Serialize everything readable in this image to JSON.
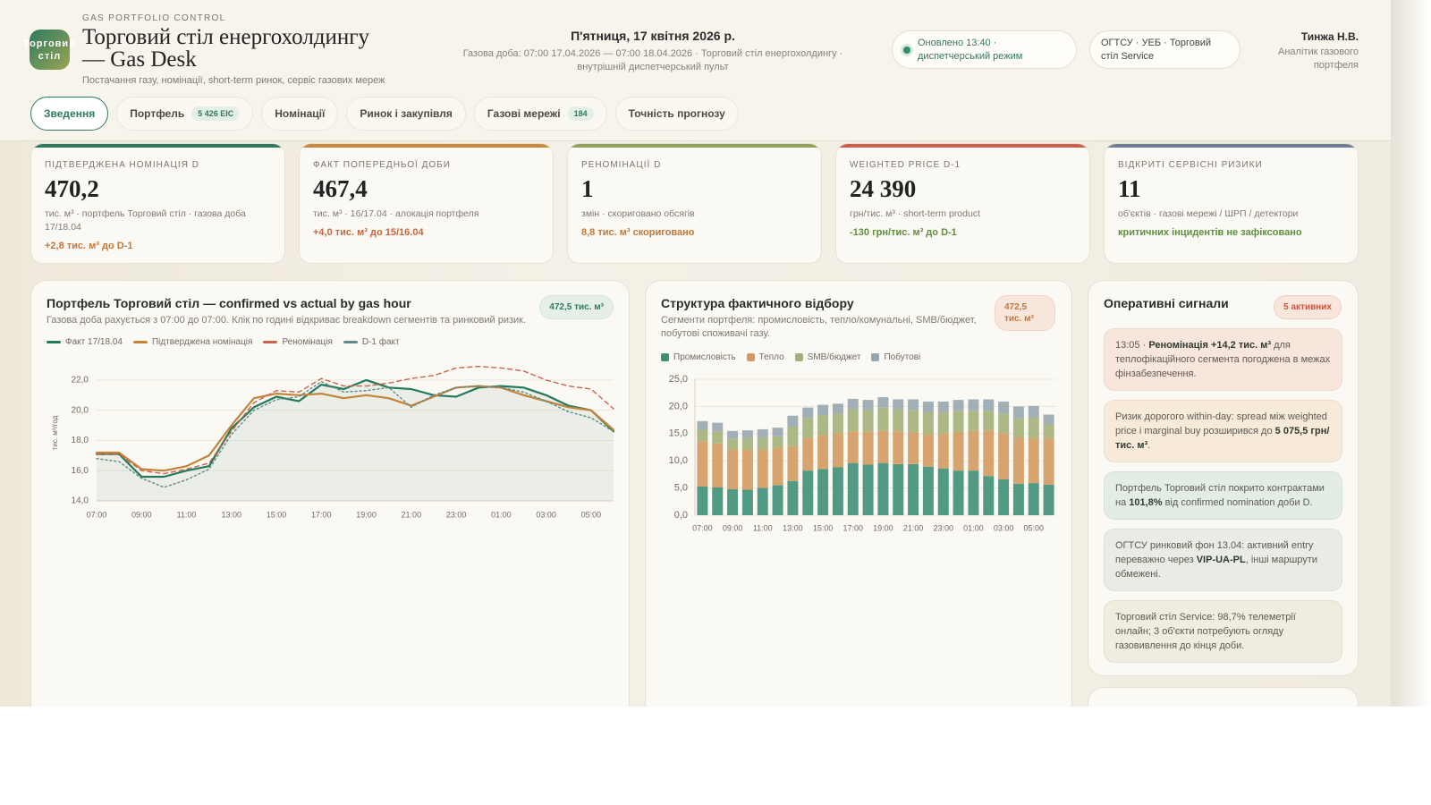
{
  "header": {
    "logo": "Торговий стіл",
    "eyebrow": "GAS PORTFOLIO CONTROL",
    "title": "Торговий стіл енергохолдингу — Gas Desk",
    "subtitle": "Постачання газу, номінації, short-term ринок, сервіс газових мереж",
    "date": "П'ятниця, 17 квітня 2026 р.",
    "gas_day": "Газова доба: 07:00 17.04.2026 — 07:00 18.04.2026 · Торговий стіл енергохолдингу · внутрішній диспетчерський пульт",
    "status": "Оновлено 13:40 · диспетчерський режим",
    "scope": "ОГТСУ · УЕБ · Торговий стіл Service",
    "user_name": "Тинжа Н.В.",
    "user_role": "Аналітик газового портфеля"
  },
  "tabs": [
    {
      "label": "Зведення",
      "active": true
    },
    {
      "label": "Портфель",
      "badge": "5 426 EIC"
    },
    {
      "label": "Номінації"
    },
    {
      "label": "Ринок і закупівля"
    },
    {
      "label": "Газові мережі",
      "badge": "184"
    },
    {
      "label": "Точність прогнозу"
    }
  ],
  "kpis": [
    {
      "label": "ПІДТВЕРДЖЕНА НОМІНАЦІЯ D",
      "value": "470,2",
      "unit": "тис. м³ · портфель Торговий стіл · газова доба 17/18.04",
      "delta": "+2,8 тис. м³ до D-1",
      "accent": "#2f7a5f",
      "delta_color": "#c2773a"
    },
    {
      "label": "ФАКТ ПОПЕРЕДНЬОЇ ДОБИ",
      "value": "467,4",
      "unit": "тис. м³ · 16/17.04 · алокація портфеля",
      "delta": "+4,0 тис. м³ до 15/16.04",
      "accent": "#c98a3e",
      "delta_color": "#c8663e"
    },
    {
      "label": "РЕНОМІНАЦІЇ D",
      "value": "1",
      "unit": "змін · скориговано обсягів",
      "delta": "8,8 тис. м³ скориговано",
      "accent": "#8fa35a",
      "delta_color": "#c2773a"
    },
    {
      "label": "WEIGHTED PRICE D-1",
      "value": "24 390",
      "unit": "грн/тис. м³ · short-term product",
      "delta": "-130 грн/тис. м³ до D-1",
      "accent": "#cf5f4a",
      "delta_color": "#5e8f3c"
    },
    {
      "label": "ВІДКРИТІ СЕРВІСНІ РИЗИКИ",
      "value": "11",
      "unit": "об'єктів · газові мережі / ШРП / детектори",
      "delta": "критичних інцидентів не зафіксовано",
      "accent": "#6f7f95",
      "delta_color": "#5e8f3c"
    }
  ],
  "chart_data": [
    {
      "type": "line",
      "title": "Портфель Торговий стіл — confirmed vs actual by gas hour",
      "subtitle": "Газова доба рахується з 07:00 до 07:00. Клік по годині відкриває breakdown сегментів та ринковий ризик.",
      "badge": "472,5 тис. м³",
      "y_label": "тис. м³/год",
      "categories": [
        "07:00",
        null,
        "09:00",
        null,
        "11:00",
        null,
        "13:00",
        null,
        "15:00",
        null,
        "17:00",
        null,
        "19:00",
        null,
        "21:00",
        null,
        "23:00",
        null,
        "01:00",
        null,
        "03:00",
        null,
        "05:00",
        null
      ],
      "ylim": [
        14,
        23
      ],
      "yticks": [
        {
          "value": 14,
          "label": "14,0"
        },
        {
          "value": 16,
          "label": "16,0"
        },
        {
          "value": 18,
          "label": "18,0"
        },
        {
          "value": 20,
          "label": "20,0"
        },
        {
          "value": 22,
          "label": "22,0"
        }
      ],
      "grid": true,
      "series": [
        {
          "name": "Факт 17/18.04",
          "color": "#23795c",
          "style": "solid",
          "fill": true,
          "values": [
            17.1,
            17.1,
            15.6,
            15.6,
            16.0,
            16.3,
            18.8,
            20.2,
            20.9,
            20.6,
            21.7,
            21.4,
            22.0,
            21.5,
            21.4,
            21.0,
            20.9,
            21.5,
            21.6,
            21.5,
            21.0,
            20.3,
            20.0,
            18.6
          ]
        },
        {
          "name": "Підтверджена номінація",
          "color": "#c3843a",
          "style": "solid",
          "values": [
            17.2,
            17.2,
            16.1,
            16.0,
            16.3,
            17.0,
            19.0,
            20.8,
            21.1,
            21.0,
            21.1,
            20.8,
            21.0,
            20.8,
            20.3,
            20.9,
            21.5,
            21.6,
            21.5,
            21.0,
            20.6,
            20.2,
            20.0,
            18.7
          ]
        },
        {
          "name": "Реномінація",
          "color": "#c9634f",
          "style": "dashed",
          "values": [
            17.1,
            17.1,
            16.0,
            15.8,
            16.1,
            16.5,
            18.6,
            20.5,
            21.3,
            21.2,
            22.1,
            21.6,
            21.6,
            21.8,
            22.1,
            22.3,
            22.8,
            22.9,
            22.8,
            22.6,
            22.0,
            21.6,
            21.4,
            20.1
          ]
        },
        {
          "name": "D-1 факт",
          "color": "#5f8a8a",
          "style": "dotted",
          "values": [
            16.8,
            16.6,
            15.5,
            14.9,
            15.4,
            16.1,
            18.4,
            20.0,
            20.7,
            20.9,
            21.9,
            21.2,
            21.3,
            21.5,
            20.2,
            21.0,
            21.5,
            21.6,
            21.5,
            21.2,
            20.6,
            19.9,
            19.5,
            18.6
          ]
        }
      ]
    },
    {
      "type": "bar",
      "stacked": true,
      "title": "Структура фактичного відбору",
      "subtitle": "Сегменти портфеля: промисловість, тепло/комунальні, SMB/бюджет, побутові споживачі газу.",
      "badge": "472,5 тис. м³",
      "categories": [
        "07:00",
        null,
        "09:00",
        null,
        "11:00",
        null,
        "13:00",
        null,
        "15:00",
        null,
        "17:00",
        null,
        "19:00",
        null,
        "21:00",
        null,
        "23:00",
        null,
        "01:00",
        null,
        "03:00",
        null,
        "05:00",
        null
      ],
      "ylim": [
        0,
        25
      ],
      "yticks": [
        {
          "value": 0,
          "label": "0,0"
        },
        {
          "value": 5,
          "label": "5,0"
        },
        {
          "value": 10,
          "label": "10,0"
        },
        {
          "value": 15,
          "label": "15,0"
        },
        {
          "value": 20,
          "label": "20,0"
        },
        {
          "value": 25,
          "label": "25,0"
        }
      ],
      "grid": true,
      "series": [
        {
          "name": "Промисловість",
          "color": "#3f8f78",
          "values": [
            5.3,
            5.1,
            4.8,
            4.7,
            5.0,
            5.5,
            6.3,
            8.2,
            8.5,
            8.8,
            9.6,
            9.3,
            9.6,
            9.4,
            9.4,
            8.9,
            8.6,
            8.2,
            8.2,
            7.2,
            6.6,
            5.8,
            5.9,
            5.6
          ]
        },
        {
          "name": "Тепло",
          "color": "#d39a62",
          "values": [
            8.3,
            8.1,
            7.3,
            7.4,
            7.0,
            6.9,
            6.4,
            6.0,
            6.2,
            6.3,
            5.8,
            6.1,
            5.9,
            6.0,
            5.8,
            6.0,
            6.5,
            7.1,
            7.3,
            8.4,
            8.5,
            8.5,
            8.3,
            8.6
          ]
        },
        {
          "name": "SMB/бюджет",
          "color": "#a3b07a",
          "values": [
            2.1,
            2.2,
            2.0,
            2.1,
            2.2,
            2.1,
            3.6,
            3.7,
            3.7,
            3.6,
            4.1,
            4.0,
            4.3,
            4.0,
            4.1,
            4.1,
            3.8,
            3.9,
            3.7,
            3.6,
            3.6,
            3.5,
            3.8,
            2.5
          ]
        },
        {
          "name": "Побутові",
          "color": "#97a6b0",
          "values": [
            1.6,
            1.6,
            1.4,
            1.4,
            1.6,
            1.6,
            2.0,
            1.9,
            1.9,
            1.8,
            1.9,
            1.8,
            1.9,
            1.9,
            2.0,
            1.9,
            2.0,
            2.0,
            2.1,
            2.1,
            2.2,
            2.2,
            2.1,
            1.8
          ]
        }
      ]
    }
  ],
  "signals": {
    "title": "Оперативні сигнали",
    "badge": "5 активних",
    "items": [
      {
        "parts": [
          "13:05 · ",
          "Реномінація +14,2 тис. м³",
          " для теплофікаційного сегмента погоджена в межах фінзабезпечення."
        ],
        "color": "#f8e6dd"
      },
      {
        "parts": [
          "Ризик дорогого within-day: spread між weighted price і marginal buy розширився до ",
          "5 075,5 грн/тис. м³",
          "."
        ],
        "color": "#f8ead9"
      },
      {
        "parts": [
          "Портфель Торговий стіл покрито контрактами на ",
          "101,8%",
          " від confirmed nomination доби D."
        ],
        "color": "#e3ede4"
      },
      {
        "parts": [
          "ОГТСУ ринковий фон 13.04: активний entry переважно через ",
          "VIP-UA-PL",
          ", інші маршрути обмежені."
        ],
        "color": "#e9ece4"
      },
      {
        "parts": [
          "Торговий стіл Service: 98,7% телеметрії онлайн; 3 об'єкти потребують огляду газовивлення до кінця доби."
        ],
        "color": "#eeeddf"
      }
    ]
  }
}
